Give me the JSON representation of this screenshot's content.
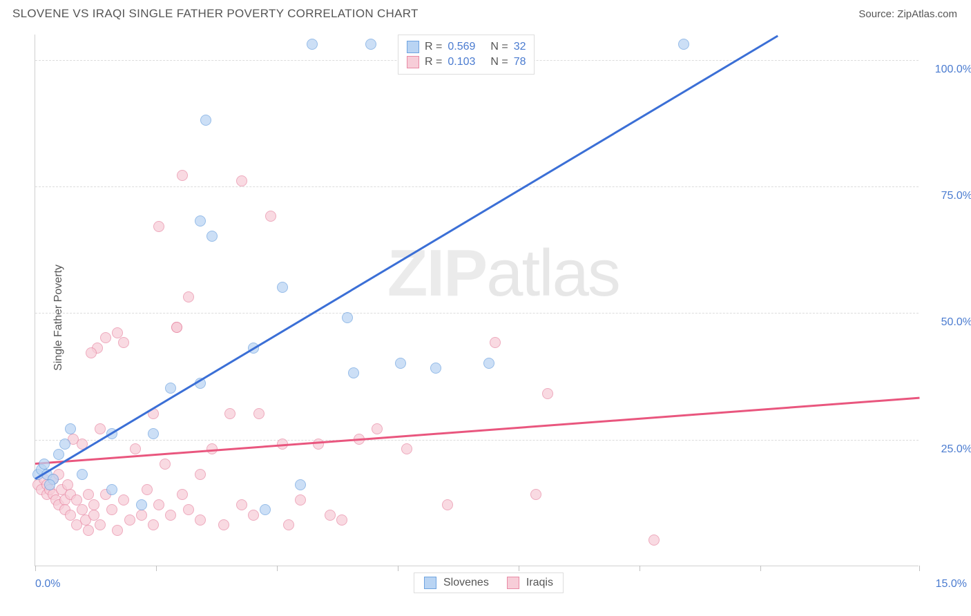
{
  "header": {
    "title": "SLOVENE VS IRAQI SINGLE FATHER POVERTY CORRELATION CHART",
    "source_prefix": "Source: ",
    "source": "ZipAtlas.com"
  },
  "watermark": {
    "zip": "ZIP",
    "atlas": "atlas"
  },
  "chart": {
    "ylabel": "Single Father Poverty",
    "xlim": [
      0,
      15
    ],
    "ylim": [
      0,
      105
    ],
    "yticks": [
      25,
      50,
      75,
      100
    ],
    "ytick_labels": [
      "25.0%",
      "50.0%",
      "75.0%",
      "100.0%"
    ],
    "xtick_positions": [
      0,
      2.05,
      4.1,
      6.15,
      8.2,
      10.25,
      12.3,
      15
    ],
    "xtick_left_label": "0.0%",
    "xtick_right_label": "15.0%",
    "grid_color": "#dcdcdc",
    "series": {
      "slovenes": {
        "label": "Slovenes",
        "fill": "#b9d4f3",
        "stroke": "#6ea3e0",
        "line": "#3b6fd6",
        "R": "0.569",
        "N": "32",
        "trend": {
          "x1": 0,
          "y1": 17.5,
          "x2": 12.6,
          "y2": 105
        },
        "points": [
          [
            0.05,
            18
          ],
          [
            0.1,
            19
          ],
          [
            0.15,
            20
          ],
          [
            0.2,
            18
          ],
          [
            0.3,
            17
          ],
          [
            0.25,
            16
          ],
          [
            0.6,
            27
          ],
          [
            0.8,
            18
          ],
          [
            1.3,
            26
          ],
          [
            1.3,
            15
          ],
          [
            2.0,
            26
          ],
          [
            1.8,
            12
          ],
          [
            2.3,
            35
          ],
          [
            2.8,
            36
          ],
          [
            2.8,
            68
          ],
          [
            2.9,
            88
          ],
          [
            3.0,
            65
          ],
          [
            3.7,
            43
          ],
          [
            3.9,
            11
          ],
          [
            4.2,
            55
          ],
          [
            4.5,
            16
          ],
          [
            4.7,
            103
          ],
          [
            5.3,
            49
          ],
          [
            5.4,
            38
          ],
          [
            5.7,
            103
          ],
          [
            6.2,
            40
          ],
          [
            6.8,
            39
          ],
          [
            7.7,
            40
          ],
          [
            8.0,
            103
          ],
          [
            11.0,
            103
          ],
          [
            0.4,
            22
          ],
          [
            0.5,
            24
          ]
        ]
      },
      "iraqis": {
        "label": "Iraqis",
        "fill": "#f7cdd8",
        "stroke": "#e88aa5",
        "line": "#e9567e",
        "R": "0.103",
        "N": "78",
        "trend": {
          "x1": 0,
          "y1": 20.5,
          "x2": 15,
          "y2": 33.5
        },
        "points": [
          [
            0.05,
            16
          ],
          [
            0.1,
            15
          ],
          [
            0.15,
            17
          ],
          [
            0.2,
            14
          ],
          [
            0.2,
            16
          ],
          [
            0.25,
            15
          ],
          [
            0.3,
            14
          ],
          [
            0.3,
            17
          ],
          [
            0.35,
            13
          ],
          [
            0.4,
            18
          ],
          [
            0.4,
            12
          ],
          [
            0.45,
            15
          ],
          [
            0.5,
            13
          ],
          [
            0.5,
            11
          ],
          [
            0.55,
            16
          ],
          [
            0.6,
            14
          ],
          [
            0.6,
            10
          ],
          [
            0.65,
            25
          ],
          [
            0.7,
            13
          ],
          [
            0.7,
            8
          ],
          [
            0.8,
            11
          ],
          [
            0.8,
            24
          ],
          [
            0.85,
            9
          ],
          [
            0.9,
            14
          ],
          [
            0.9,
            7
          ],
          [
            1.0,
            12
          ],
          [
            1.0,
            10
          ],
          [
            1.1,
            27
          ],
          [
            1.1,
            8
          ],
          [
            1.2,
            14
          ],
          [
            1.2,
            45
          ],
          [
            1.3,
            11
          ],
          [
            1.4,
            7
          ],
          [
            1.4,
            46
          ],
          [
            1.5,
            13
          ],
          [
            1.5,
            44
          ],
          [
            1.6,
            9
          ],
          [
            1.7,
            23
          ],
          [
            1.8,
            10
          ],
          [
            1.9,
            15
          ],
          [
            2.0,
            8
          ],
          [
            2.0,
            30
          ],
          [
            2.1,
            67
          ],
          [
            2.1,
            12
          ],
          [
            2.2,
            20
          ],
          [
            2.3,
            10
          ],
          [
            2.4,
            47
          ],
          [
            2.4,
            47
          ],
          [
            2.5,
            14
          ],
          [
            2.5,
            77
          ],
          [
            2.6,
            11
          ],
          [
            2.6,
            53
          ],
          [
            2.8,
            9
          ],
          [
            2.8,
            18
          ],
          [
            3.0,
            23
          ],
          [
            3.2,
            8
          ],
          [
            3.3,
            30
          ],
          [
            3.5,
            12
          ],
          [
            3.5,
            76
          ],
          [
            3.7,
            10
          ],
          [
            3.8,
            30
          ],
          [
            4.0,
            69
          ],
          [
            4.2,
            24
          ],
          [
            4.3,
            8
          ],
          [
            4.5,
            13
          ],
          [
            4.8,
            24
          ],
          [
            5.0,
            10
          ],
          [
            5.2,
            9
          ],
          [
            5.5,
            25
          ],
          [
            5.8,
            27
          ],
          [
            6.3,
            23
          ],
          [
            7.0,
            12
          ],
          [
            7.8,
            44
          ],
          [
            8.5,
            14
          ],
          [
            8.7,
            34
          ],
          [
            10.5,
            5
          ],
          [
            1.05,
            43
          ],
          [
            0.95,
            42
          ]
        ]
      }
    },
    "legend_top": {
      "r_prefix": "R = ",
      "n_prefix": "N = "
    },
    "point_radius": 8
  }
}
